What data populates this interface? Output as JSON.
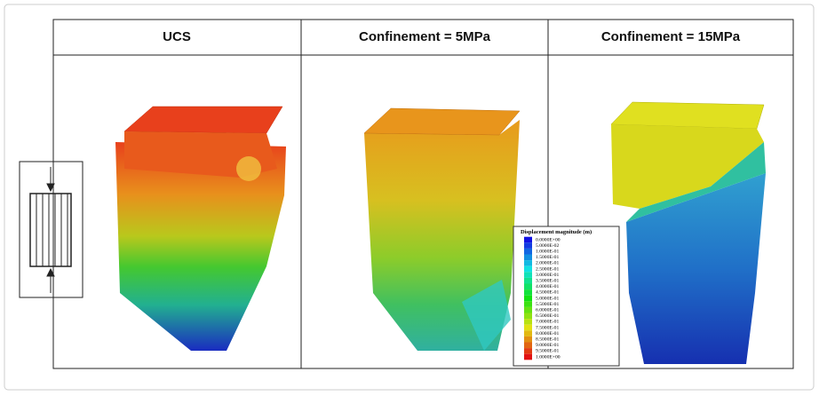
{
  "panels": [
    {
      "title": "UCS"
    },
    {
      "title": "Confinement = 5MPa"
    },
    {
      "title": "Confinement = 15MPa"
    }
  ],
  "legend": {
    "title": "Displacement magnitude (m)",
    "labels": [
      "0.0000E+00",
      "5.0000E-02",
      "1.0000E-01",
      "1.5000E-01",
      "2.0000E-01",
      "2.5000E-01",
      "3.0000E-01",
      "3.5000E-01",
      "4.0000E-01",
      "4.5000E-01",
      "5.0000E-01",
      "5.5000E-01",
      "6.0000E-01",
      "6.5000E-01",
      "7.0000E-01",
      "7.5000E-01",
      "8.0000E-01",
      "8.5000E-01",
      "9.0000E-01",
      "9.5000E-01",
      "1.0000E+00"
    ]
  }
}
